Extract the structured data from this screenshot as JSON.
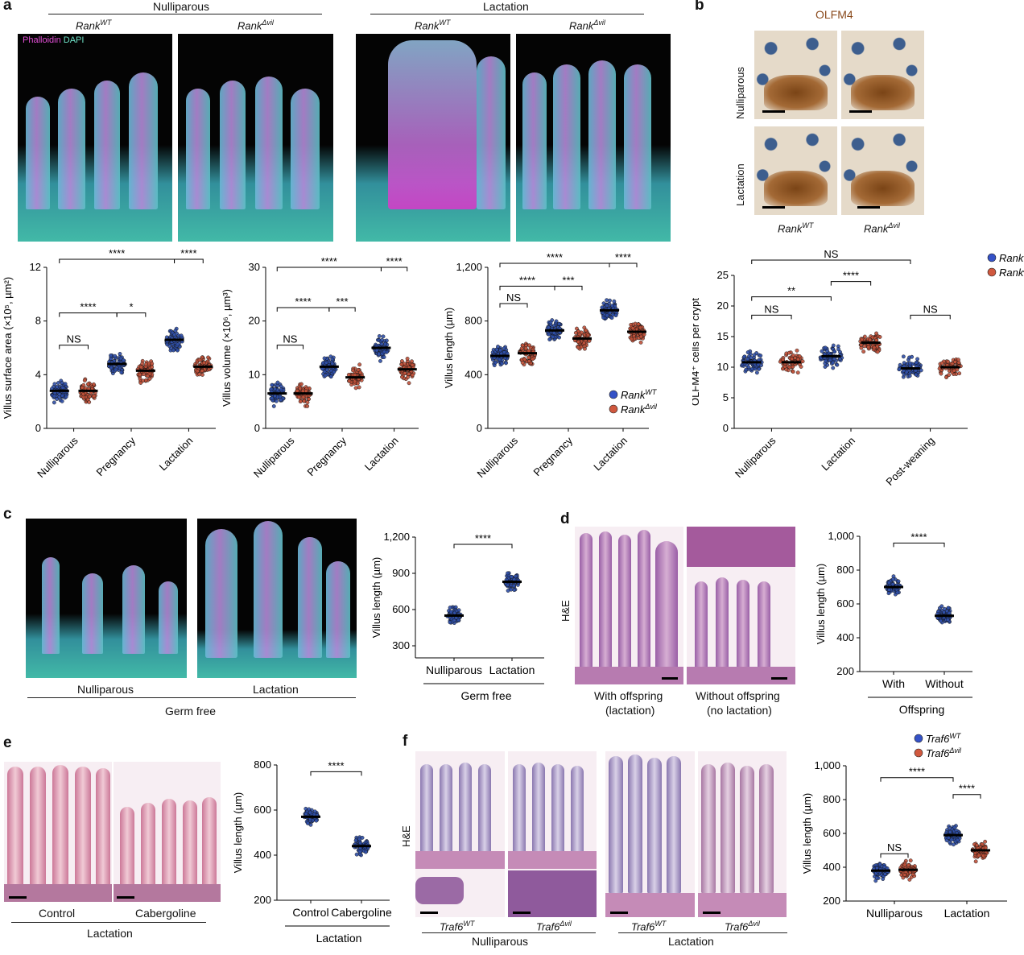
{
  "panels": {
    "a": {
      "label": "a",
      "groups": [
        {
          "text": "Nulliparous"
        },
        {
          "text": "Lactation"
        }
      ],
      "genotypes": [
        {
          "name": "Rank",
          "sup": "WT"
        },
        {
          "name": "Rank",
          "sup": "Δvil"
        },
        {
          "name": "Rank",
          "sup": "WT"
        },
        {
          "name": "Rank",
          "sup": "Δvil"
        }
      ],
      "stain": {
        "phalloidin": "Phalloidin",
        "dapi": "DAPI"
      }
    },
    "b": {
      "label": "b",
      "stain": "OLFM4",
      "rows": [
        {
          "text": "Nulliparous"
        },
        {
          "text": "Lactation"
        }
      ],
      "cols": [
        {
          "name": "Rank",
          "sup": "WT"
        },
        {
          "name": "Rank",
          "sup": "Δvil"
        }
      ]
    },
    "c": {
      "label": "c",
      "images": [
        {
          "text": "Nulliparous"
        },
        {
          "text": "Lactation"
        }
      ],
      "group": "Germ free"
    },
    "d": {
      "label": "d",
      "stain": "H&E",
      "images": [
        {
          "l1": "With offspring",
          "l2": "(lactation)"
        },
        {
          "l1": "Without offspring",
          "l2": "(no lactation)"
        }
      ]
    },
    "e": {
      "label": "e",
      "images": [
        {
          "text": "Control"
        },
        {
          "text": "Cabergoline"
        }
      ],
      "group": "Lactation"
    },
    "f": {
      "label": "f",
      "stain": "H&E",
      "images": [
        {
          "name": "Traf6",
          "sup": "WT"
        },
        {
          "name": "Traf6",
          "sup": "Δvil"
        },
        {
          "name": "Traf6",
          "sup": "WT"
        },
        {
          "name": "Traf6",
          "sup": "Δvil"
        }
      ],
      "groups": [
        {
          "text": "Nulliparous"
        },
        {
          "text": "Lactation"
        }
      ]
    }
  },
  "colors": {
    "wt": "#2f4fa8",
    "mut": "#c0523a",
    "wt_legend": "#3552c7",
    "mut_legend": "#d0583e"
  },
  "chart_data": [
    {
      "id": "a1",
      "type": "scatter",
      "ylabel": "Villus surface area (×10⁵, µm²)",
      "ylim": [
        0,
        12
      ],
      "yticks": [
        "0",
        "4",
        "8",
        "12"
      ],
      "categories": [
        "Nulliparous",
        "Pregnancy",
        "Lactation"
      ],
      "series": [
        {
          "name": "Rank WT",
          "values": [
            2.8,
            4.8,
            6.6
          ]
        },
        {
          "name": "Rank Δvil",
          "values": [
            2.8,
            4.3,
            4.6
          ]
        }
      ],
      "sig": [
        {
          "t": "NS",
          "a": 0,
          "b": 1,
          "y": 6.2
        },
        {
          "t": "****",
          "a": 0,
          "b": 2,
          "y": 8.6
        },
        {
          "t": "*",
          "a": 2,
          "b": 3,
          "y": 8.6
        },
        {
          "t": "****",
          "a": 0,
          "b": 4,
          "y": 12.6
        },
        {
          "t": "****",
          "a": 4,
          "b": 5,
          "y": 12.6
        }
      ]
    },
    {
      "id": "a2",
      "type": "scatter",
      "ylabel": "Villus volume (×10⁶, µm³)",
      "ylim": [
        0,
        30
      ],
      "yticks": [
        "0",
        "10",
        "20",
        "30"
      ],
      "categories": [
        "Nulliparous",
        "Pregnancy",
        "Lactation"
      ],
      "series": [
        {
          "name": "Rank WT",
          "values": [
            6.5,
            11.5,
            15
          ]
        },
        {
          "name": "Rank Δvil",
          "values": [
            6.5,
            9.5,
            11
          ]
        }
      ],
      "sig": [
        {
          "t": "NS",
          "a": 0,
          "b": 1,
          "y": 15.5
        },
        {
          "t": "****",
          "a": 0,
          "b": 2,
          "y": 22.5
        },
        {
          "t": "***",
          "a": 2,
          "b": 3,
          "y": 22.5
        },
        {
          "t": "****",
          "a": 0,
          "b": 4,
          "y": 30
        },
        {
          "t": "****",
          "a": 4,
          "b": 5,
          "y": 30
        }
      ]
    },
    {
      "id": "a3",
      "type": "scatter",
      "ylabel": "Villus length (µm)",
      "ylim": [
        0,
        1200
      ],
      "yticks": [
        "0",
        "400",
        "800",
        "1,200"
      ],
      "categories": [
        "Nulliparous",
        "Pregnancy",
        "Lactation"
      ],
      "series": [
        {
          "name": "Rank WT",
          "values": [
            540,
            730,
            880
          ]
        },
        {
          "name": "Rank Δvil",
          "values": [
            560,
            670,
            720
          ]
        }
      ],
      "sig": [
        {
          "t": "NS",
          "a": 0,
          "b": 1,
          "y": 930
        },
        {
          "t": "****",
          "a": 0,
          "b": 2,
          "y": 1060
        },
        {
          "t": "***",
          "a": 2,
          "b": 3,
          "y": 1060
        },
        {
          "t": "****",
          "a": 0,
          "b": 4,
          "y": 1230
        },
        {
          "t": "****",
          "a": 4,
          "b": 5,
          "y": 1230
        }
      ],
      "legend": [
        {
          "name": "Rank",
          "sup": "WT"
        },
        {
          "name": "Rank",
          "sup": "Δvil"
        }
      ]
    },
    {
      "id": "b1",
      "type": "scatter",
      "ylabel": "OLFM4⁺ cells per crypt",
      "ylim": [
        0,
        25
      ],
      "yticks": [
        "0",
        "5",
        "10",
        "15",
        "20",
        "25"
      ],
      "categories": [
        "Nulliparous",
        "Lactation",
        "Post-weaning"
      ],
      "series": [
        {
          "name": "Rank WT",
          "values": [
            10.8,
            11.8,
            9.8
          ]
        },
        {
          "name": "Rank Δvil",
          "values": [
            10.8,
            14,
            10
          ]
        }
      ],
      "sig": [
        {
          "t": "NS",
          "a": 0,
          "b": 1,
          "y": 18.5
        },
        {
          "t": "**",
          "a": 0,
          "b": 2,
          "y": 21.5
        },
        {
          "t": "****",
          "a": 2,
          "b": 3,
          "y": 24
        },
        {
          "t": "NS",
          "a": 0,
          "b": 4,
          "y": 27.5
        },
        {
          "t": "NS",
          "a": 4,
          "b": 5,
          "y": 18.5
        }
      ],
      "legend": [
        {
          "name": "Rank",
          "sup": "WT"
        },
        {
          "name": "Rank",
          "sup": "Δvil"
        }
      ]
    },
    {
      "id": "c1",
      "type": "scatter",
      "ylabel": "Villus length (µm)",
      "ylim": [
        200,
        1200
      ],
      "yticks": [
        "300",
        "600",
        "900",
        "1,200"
      ],
      "categories": [
        "Nulliparous",
        "Lactation"
      ],
      "xgroup": "Germ free",
      "series": [
        {
          "name": "Germ free",
          "values": [
            550,
            830
          ]
        }
      ],
      "sig": [
        {
          "t": "****",
          "a": 0,
          "b": 1,
          "y": 1140
        }
      ]
    },
    {
      "id": "d1",
      "type": "scatter",
      "ylabel": "Villus length (µm)",
      "ylim": [
        200,
        1000
      ],
      "yticks": [
        "200",
        "400",
        "600",
        "800",
        "1,000"
      ],
      "categories": [
        "With",
        "Without"
      ],
      "xgroup": "Offspring",
      "series": [
        {
          "name": "Offspring",
          "values": [
            700,
            530
          ]
        }
      ],
      "sig": [
        {
          "t": "****",
          "a": 0,
          "b": 1,
          "y": 960
        }
      ]
    },
    {
      "id": "e1",
      "type": "scatter",
      "ylabel": "Villus length (µm)",
      "ylim": [
        200,
        800
      ],
      "yticks": [
        "200",
        "400",
        "600",
        "800"
      ],
      "categories": [
        "Control",
        "Cabergoline"
      ],
      "xgroup": "Lactation",
      "series": [
        {
          "name": "Lactation",
          "values": [
            570,
            440
          ]
        }
      ],
      "sig": [
        {
          "t": "****",
          "a": 0,
          "b": 1,
          "y": 770
        }
      ]
    },
    {
      "id": "f1",
      "type": "scatter",
      "ylabel": "Villus length (µm)",
      "ylim": [
        200,
        1000
      ],
      "yticks": [
        "200",
        "400",
        "600",
        "800",
        "1,000"
      ],
      "categories": [
        "Nulliparous",
        "Lactation"
      ],
      "series": [
        {
          "name": "Traf6 WT",
          "values": [
            380,
            590
          ]
        },
        {
          "name": "Traf6 Δvil",
          "values": [
            385,
            500
          ]
        }
      ],
      "sig": [
        {
          "t": "NS",
          "a": 0,
          "b": 1,
          "y": 480
        },
        {
          "t": "****",
          "a": 0,
          "b": 2,
          "y": 930
        },
        {
          "t": "****",
          "a": 2,
          "b": 3,
          "y": 830
        }
      ],
      "legend": [
        {
          "name": "Traf6",
          "sup": "WT"
        },
        {
          "name": "Traf6",
          "sup": "Δvil"
        }
      ]
    }
  ]
}
